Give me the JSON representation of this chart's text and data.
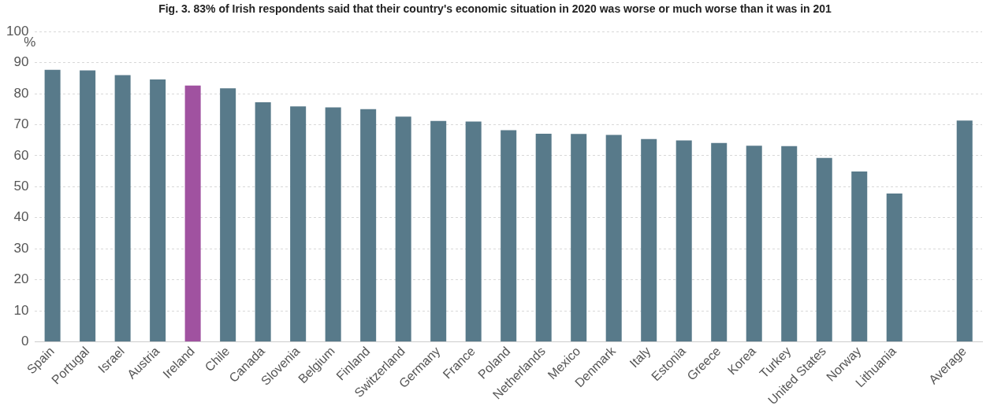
{
  "chart_data": {
    "type": "bar",
    "title": "Fig. 3. 83% of Irish respondents said that their country's economic situation in 2020 was worse or much worse than it was in 201",
    "ylabel": "%",
    "categories": [
      "Spain",
      "Portugal",
      "Israel",
      "Austria",
      "Ireland",
      "Chile",
      "Canada",
      "Slovenia",
      "Belgium",
      "Finland",
      "Switzerland",
      "Germany",
      "France",
      "Poland",
      "Netherlands",
      "Mexico",
      "Denmark",
      "Italy",
      "Estonia",
      "Greece",
      "Korea",
      "Turkey",
      "United States",
      "Norway",
      "Lithuania",
      null,
      "Average"
    ],
    "values": [
      87.7,
      87.5,
      86,
      84.6,
      82.6,
      81.7,
      77.2,
      75.9,
      75.6,
      75,
      72.6,
      71.2,
      71,
      68.2,
      67.1,
      67,
      66.7,
      65.4,
      64.9,
      64.1,
      63.2,
      63.1,
      59.3,
      54.9,
      47.8,
      null,
      71.3
    ],
    "colors": [
      "#587a8a",
      "#587a8a",
      "#587a8a",
      "#587a8a",
      "#a052a0",
      "#587a8a",
      "#587a8a",
      "#587a8a",
      "#587a8a",
      "#587a8a",
      "#587a8a",
      "#587a8a",
      "#587a8a",
      "#587a8a",
      "#587a8a",
      "#587a8a",
      "#587a8a",
      "#587a8a",
      "#587a8a",
      "#587a8a",
      "#587a8a",
      "#587a8a",
      "#587a8a",
      "#587a8a",
      "#587a8a",
      "#587a8a",
      "#587a8a"
    ],
    "ylim": [
      0,
      100
    ],
    "yticks": [
      0,
      10,
      20,
      30,
      40,
      50,
      60,
      70,
      80,
      90,
      100
    ],
    "grid": "y",
    "legend": false
  }
}
